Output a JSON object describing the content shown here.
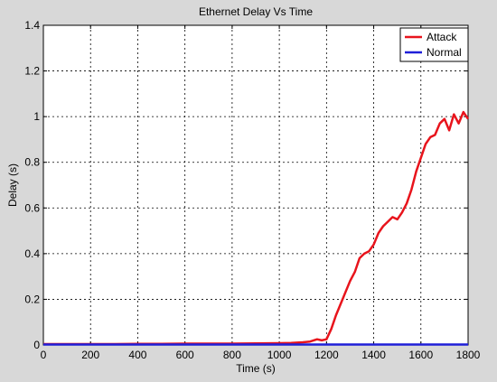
{
  "chart_data": {
    "type": "line",
    "title": "Ethernet Delay Vs Time",
    "xlabel": "Time (s)",
    "ylabel": "Delay (s)",
    "xlim": [
      0,
      1800
    ],
    "ylim": [
      0,
      1.4
    ],
    "x_ticks": [
      0,
      200,
      400,
      600,
      800,
      1000,
      1200,
      1400,
      1600,
      1800
    ],
    "y_ticks": [
      0,
      0.2,
      0.4,
      0.6,
      0.8,
      1,
      1.2,
      1.4
    ],
    "x_tick_labels": [
      "0",
      "200",
      "400",
      "600",
      "800",
      "1000",
      "1200",
      "1400",
      "1600",
      "1800"
    ],
    "y_tick_labels": [
      "0",
      "0.2",
      "0.4",
      "0.6",
      "0.8",
      "1",
      "1.2",
      "1.4"
    ],
    "grid": true,
    "legend_position": "top-right",
    "series": [
      {
        "name": "Attack",
        "color": "#e8141c",
        "x": [
          0,
          100,
          200,
          300,
          400,
          500,
          600,
          700,
          800,
          900,
          1000,
          1050,
          1100,
          1130,
          1160,
          1180,
          1200,
          1220,
          1240,
          1260,
          1280,
          1300,
          1320,
          1340,
          1360,
          1380,
          1400,
          1420,
          1440,
          1460,
          1480,
          1500,
          1520,
          1540,
          1560,
          1580,
          1600,
          1620,
          1640,
          1660,
          1680,
          1700,
          1720,
          1740,
          1760,
          1780,
          1800
        ],
        "values": [
          0.004,
          0.004,
          0.004,
          0.004,
          0.005,
          0.005,
          0.006,
          0.006,
          0.006,
          0.007,
          0.008,
          0.009,
          0.012,
          0.015,
          0.025,
          0.02,
          0.025,
          0.07,
          0.13,
          0.18,
          0.23,
          0.28,
          0.32,
          0.38,
          0.4,
          0.41,
          0.44,
          0.49,
          0.52,
          0.54,
          0.56,
          0.55,
          0.58,
          0.62,
          0.68,
          0.76,
          0.82,
          0.88,
          0.91,
          0.92,
          0.97,
          0.99,
          0.94,
          1.01,
          0.97,
          1.02,
          0.99
        ]
      },
      {
        "name": "Normal",
        "color": "#1f1fd8",
        "x": [
          0,
          100,
          200,
          300,
          400,
          500,
          600,
          700,
          800,
          900,
          1000,
          1100,
          1200,
          1300,
          1400,
          1500,
          1600,
          1700,
          1800
        ],
        "values": [
          0.002,
          0.002,
          0.002,
          0.002,
          0.002,
          0.002,
          0.002,
          0.002,
          0.002,
          0.002,
          0.002,
          0.002,
          0.002,
          0.002,
          0.002,
          0.002,
          0.002,
          0.002,
          0.002
        ]
      }
    ]
  }
}
